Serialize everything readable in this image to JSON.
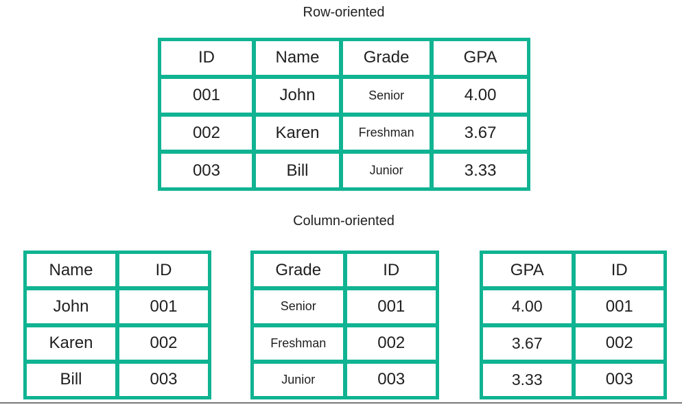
{
  "colors": {
    "table-green": "#10b392",
    "cell-bg": "#ffffff",
    "text": "#1f1f1f",
    "divider-gray": "#787878"
  },
  "row_oriented": {
    "title": "Row-oriented",
    "headers": [
      "ID",
      "Name",
      "Grade",
      "GPA"
    ],
    "rows": [
      [
        "001",
        "John",
        "Senior",
        "4.00"
      ],
      [
        "002",
        "Karen",
        "Freshman",
        "3.67"
      ],
      [
        "003",
        "Bill",
        "Junior",
        "3.33"
      ]
    ]
  },
  "column_oriented": {
    "title": "Column-oriented",
    "tables": [
      {
        "headers": [
          "Name",
          "ID"
        ],
        "rows": [
          [
            "John",
            "001"
          ],
          [
            "Karen",
            "002"
          ],
          [
            "Bill",
            "003"
          ]
        ]
      },
      {
        "headers": [
          "Grade",
          "ID"
        ],
        "rows": [
          [
            "Senior",
            "001"
          ],
          [
            "Freshman",
            "002"
          ],
          [
            "Junior",
            "003"
          ]
        ]
      },
      {
        "headers": [
          "GPA",
          "ID"
        ],
        "rows": [
          [
            "4.00",
            "001"
          ],
          [
            "3.67",
            "002"
          ],
          [
            "3.33",
            "003"
          ]
        ]
      }
    ]
  }
}
